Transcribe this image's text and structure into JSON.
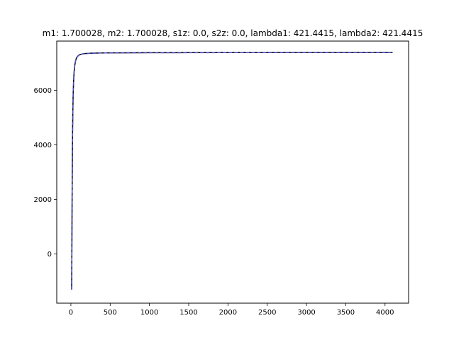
{
  "chart_data": {
    "type": "line",
    "title": "m1: 1.700028, m2: 1.700028, s1z: 0.0, s2z: 0.0, lambda1: 421.4415, lambda2: 421.4415",
    "xlabel": "",
    "ylabel": "",
    "xlim": [
      -180,
      4300
    ],
    "ylim": [
      -1800,
      7800
    ],
    "x_ticks": [
      0,
      500,
      1000,
      1500,
      2000,
      2500,
      3000,
      3500,
      4000
    ],
    "y_ticks": [
      0,
      2000,
      4000,
      6000
    ],
    "x_tick_labels": [
      "0",
      "500",
      "1000",
      "1500",
      "2000",
      "2500",
      "3000",
      "3500",
      "4000"
    ],
    "y_tick_labels": [
      "0",
      "2000",
      "4000",
      "6000"
    ],
    "grid": false,
    "legend": "none",
    "series": [
      {
        "color": "#000000",
        "style": "solid",
        "x": [
          10,
          12,
          15,
          18,
          20,
          22,
          25,
          28,
          30,
          35,
          40,
          45,
          50,
          60,
          70,
          80,
          90,
          100,
          120,
          140,
          160,
          180,
          200,
          250,
          300,
          350,
          400,
          500,
          600,
          800,
          1000,
          1500,
          2000,
          2500,
          3000,
          3500,
          4000,
          4096
        ],
        "y": [
          -1300,
          -200,
          1700,
          3100,
          3950,
          4550,
          5200,
          5700,
          5950,
          6350,
          6620,
          6800,
          6920,
          7080,
          7170,
          7220,
          7255,
          7280,
          7310,
          7325,
          7335,
          7342,
          7347,
          7355,
          7360,
          7363,
          7365,
          7368,
          7370,
          7372,
          7374,
          7377,
          7379,
          7380,
          7381,
          7382,
          7383,
          7383
        ]
      },
      {
        "color": "#4a4ac8",
        "style": "dashed",
        "x": [
          10,
          12,
          15,
          18,
          20,
          22,
          25,
          28,
          30,
          35,
          40,
          45,
          50,
          60,
          70,
          80,
          90,
          100,
          120,
          140,
          160,
          180,
          200,
          250,
          300,
          350,
          400,
          500,
          600,
          800,
          1000,
          1500,
          2000,
          2500,
          3000,
          3500,
          4000,
          4096
        ],
        "y": [
          -1300,
          -200,
          1700,
          3100,
          3950,
          4550,
          5200,
          5700,
          5950,
          6350,
          6620,
          6800,
          6920,
          7080,
          7170,
          7220,
          7255,
          7280,
          7310,
          7325,
          7335,
          7342,
          7347,
          7355,
          7360,
          7363,
          7365,
          7368,
          7370,
          7372,
          7374,
          7376,
          7377,
          7377,
          7378,
          7378,
          7378,
          7378
        ]
      }
    ]
  }
}
